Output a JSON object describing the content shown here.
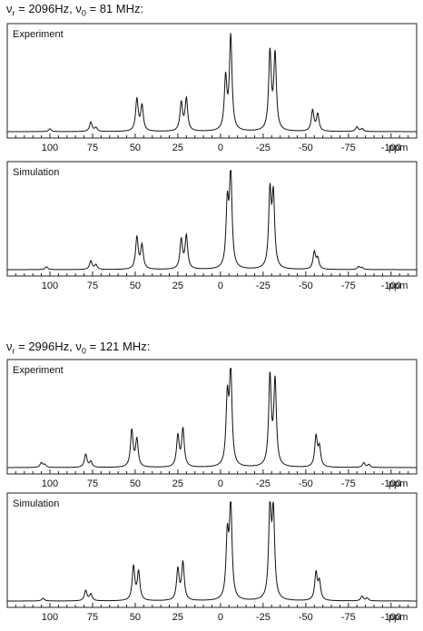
{
  "groups": [
    {
      "heading": {
        "nu": "ν",
        "r_sub": "r",
        "r_val": " = 2096Hz, ",
        "zero_sub": "0",
        "zero_val": " = 81 MHz:"
      },
      "panels": [
        {
          "label": "Experiment",
          "kind": "experiment"
        },
        {
          "label": "Simulation",
          "kind": "simulation"
        }
      ]
    },
    {
      "heading": {
        "nu": "ν",
        "r_sub": "r",
        "r_val": " = 2996Hz, ",
        "zero_sub": "0",
        "zero_val": " = 121 MHz:"
      },
      "panels": [
        {
          "label": "Experiment",
          "kind": "experiment"
        },
        {
          "label": "Simulation",
          "kind": "simulation"
        }
      ]
    }
  ],
  "chart_data": [
    {
      "type": "line",
      "title": "Experiment",
      "xlabel": "ppm",
      "x_ticks": [
        100,
        75,
        50,
        25,
        0,
        -25,
        -50,
        -75,
        -100
      ],
      "xlim": [
        125,
        -115
      ],
      "peaks": [
        {
          "x": 100,
          "y": 0.03
        },
        {
          "x": 76,
          "y": 0.1
        },
        {
          "x": 73,
          "y": 0.04
        },
        {
          "x": 49,
          "y": 0.34
        },
        {
          "x": 46,
          "y": 0.27
        },
        {
          "x": 23,
          "y": 0.3
        },
        {
          "x": 20,
          "y": 0.34
        },
        {
          "x": -3,
          "y": 0.55
        },
        {
          "x": -6,
          "y": 1.0
        },
        {
          "x": -29,
          "y": 0.83
        },
        {
          "x": -32,
          "y": 0.8
        },
        {
          "x": -54,
          "y": 0.22
        },
        {
          "x": -57,
          "y": 0.18
        },
        {
          "x": -80,
          "y": 0.05
        },
        {
          "x": -83,
          "y": 0.03
        }
      ]
    },
    {
      "type": "line",
      "title": "Simulation",
      "xlabel": "ppm",
      "x_ticks": [
        100,
        75,
        50,
        25,
        0,
        -25,
        -50,
        -75,
        -100
      ],
      "xlim": [
        125,
        -115
      ],
      "peaks": [
        {
          "x": 102,
          "y": 0.03
        },
        {
          "x": 76,
          "y": 0.09
        },
        {
          "x": 73,
          "y": 0.05
        },
        {
          "x": 49,
          "y": 0.34
        },
        {
          "x": 46,
          "y": 0.25
        },
        {
          "x": 23,
          "y": 0.31
        },
        {
          "x": 20,
          "y": 0.35
        },
        {
          "x": -4,
          "y": 0.66
        },
        {
          "x": -6,
          "y": 1.0
        },
        {
          "x": -29,
          "y": 0.79
        },
        {
          "x": -31,
          "y": 0.75
        },
        {
          "x": -55,
          "y": 0.18
        },
        {
          "x": -57,
          "y": 0.11
        },
        {
          "x": -81,
          "y": 0.03
        },
        {
          "x": -83,
          "y": 0.02
        }
      ]
    },
    {
      "type": "line",
      "title": "Experiment",
      "xlabel": "ppm",
      "x_ticks": [
        100,
        75,
        50,
        25,
        0,
        -25,
        -50,
        -75,
        -100
      ],
      "xlim": [
        125,
        -115
      ],
      "peaks": [
        {
          "x": 105,
          "y": 0.05
        },
        {
          "x": 103,
          "y": 0.03
        },
        {
          "x": 79,
          "y": 0.14
        },
        {
          "x": 76,
          "y": 0.06
        },
        {
          "x": 52,
          "y": 0.39
        },
        {
          "x": 49,
          "y": 0.29
        },
        {
          "x": 25,
          "y": 0.33
        },
        {
          "x": 22,
          "y": 0.4
        },
        {
          "x": -4,
          "y": 0.7
        },
        {
          "x": -6,
          "y": 1.0
        },
        {
          "x": -29,
          "y": 0.95
        },
        {
          "x": -32,
          "y": 0.9
        },
        {
          "x": -56,
          "y": 0.32
        },
        {
          "x": -58,
          "y": 0.2
        },
        {
          "x": -84,
          "y": 0.05
        },
        {
          "x": -87,
          "y": 0.03
        }
      ]
    },
    {
      "type": "line",
      "title": "Simulation",
      "xlabel": "ppm",
      "x_ticks": [
        100,
        75,
        50,
        25,
        0,
        -25,
        -50,
        -75,
        -100
      ],
      "xlim": [
        125,
        -115
      ],
      "peaks": [
        {
          "x": 104,
          "y": 0.03
        },
        {
          "x": 79,
          "y": 0.11
        },
        {
          "x": 76,
          "y": 0.07
        },
        {
          "x": 51,
          "y": 0.36
        },
        {
          "x": 48,
          "y": 0.3
        },
        {
          "x": 25,
          "y": 0.33
        },
        {
          "x": 22,
          "y": 0.4
        },
        {
          "x": -4,
          "y": 0.65
        },
        {
          "x": -6,
          "y": 1.0
        },
        {
          "x": -29,
          "y": 0.97
        },
        {
          "x": -31,
          "y": 0.9
        },
        {
          "x": -56,
          "y": 0.29
        },
        {
          "x": -58,
          "y": 0.19
        },
        {
          "x": -83,
          "y": 0.05
        },
        {
          "x": -86,
          "y": 0.03
        }
      ]
    }
  ]
}
